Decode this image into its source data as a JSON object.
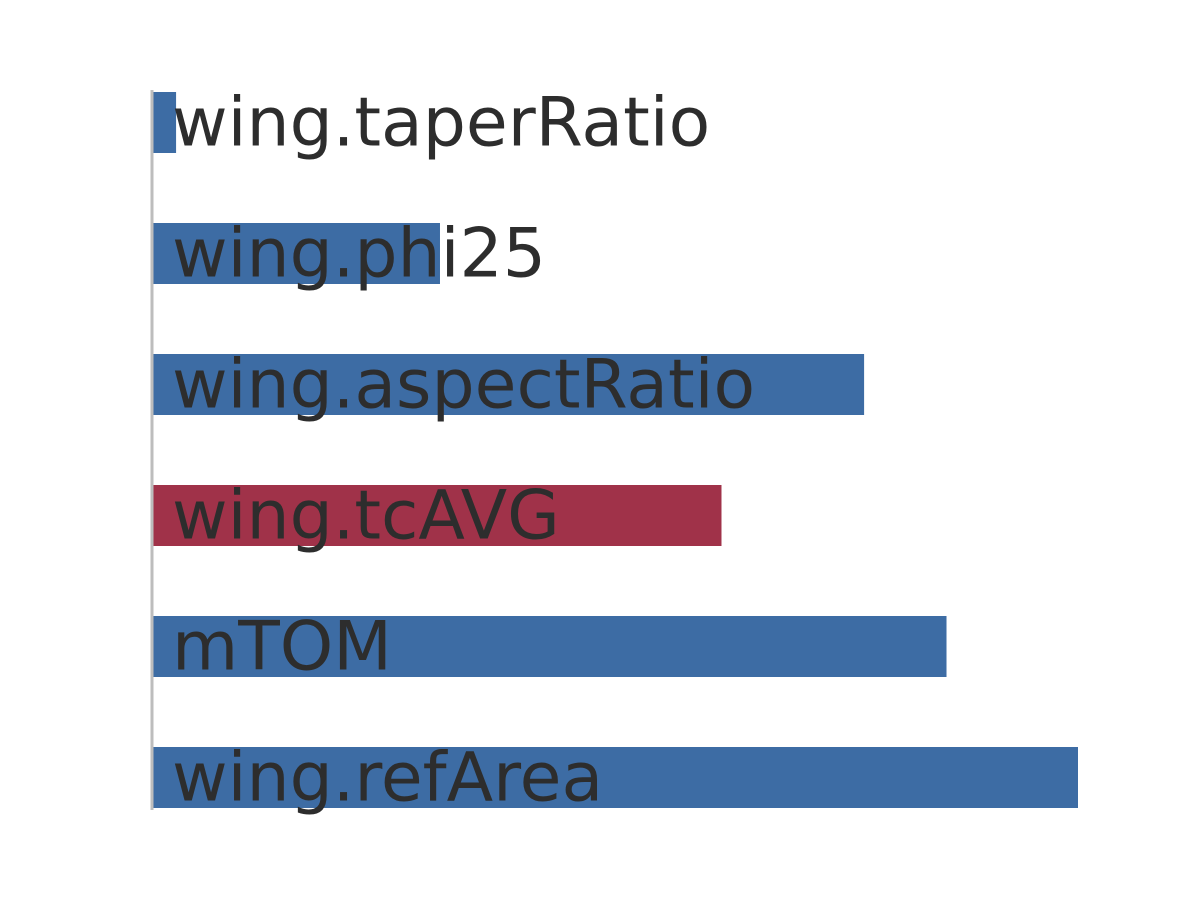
{
  "chart_data": {
    "type": "bar",
    "orientation": "horizontal",
    "title": "",
    "xlabel": "",
    "ylabel": "",
    "categories": [
      "wing.taperRatio",
      "wing.phi25",
      "wing.aspectRatio",
      "wing.tcAVG",
      "mTOM",
      "wing.refArea"
    ],
    "values": [
      0.026,
      0.311,
      0.769,
      0.615,
      0.858,
      1.0
    ],
    "xlim": [
      0,
      1
    ],
    "grid": false,
    "legend": "none",
    "colors": {
      "default": "#3d6ca4",
      "highlight": "#a03249",
      "axis": "#bdbdbd",
      "text": "#2d2d2d"
    },
    "highlighted_category": "wing.tcAVG"
  }
}
